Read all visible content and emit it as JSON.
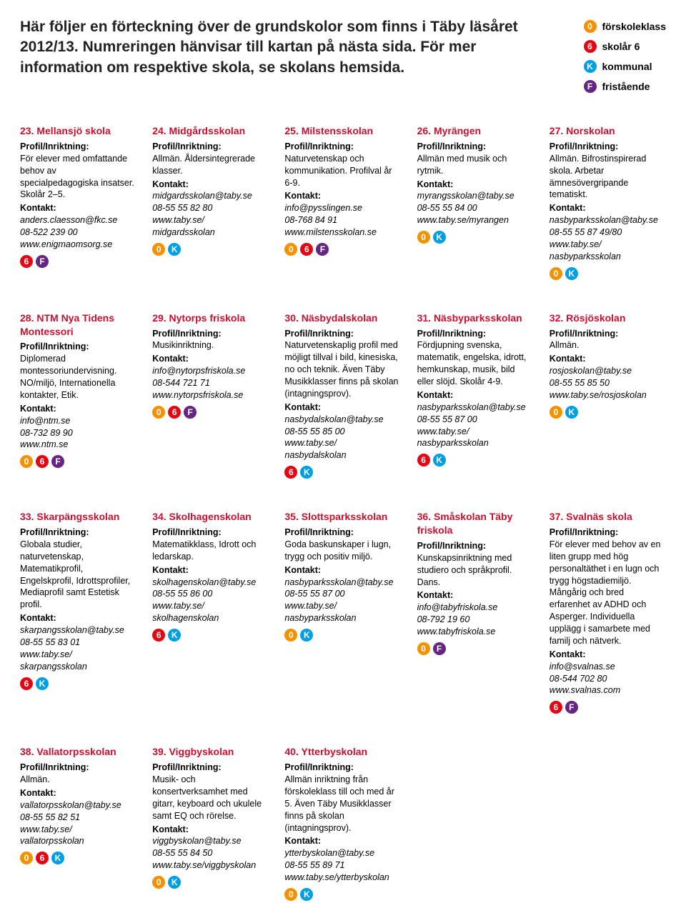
{
  "intro_line1": "Här följer en förteckning över de grundskolor som finns i Täby läsåret 2012/13. Numreringen hänvisar till kartan på nästa sida. För mer information om respektive skola, se skolans hemsida.",
  "legend": [
    {
      "letter": "0",
      "color": "#f39200",
      "label": "förskoleklass"
    },
    {
      "letter": "6",
      "color": "#e30613",
      "label": "skolår 6"
    },
    {
      "letter": "K",
      "color": "#009fe3",
      "label": "kommunal"
    },
    {
      "letter": "F",
      "color": "#662483",
      "label": "fristående"
    }
  ],
  "labels": {
    "profile": "Profil/Inriktning:",
    "contact": "Kontakt:"
  },
  "schools": [
    {
      "title": "23. Mellansjö skola",
      "profile": "För elever med omfattande behov av specialpedagogiska insatser. Skolår 2–5.",
      "contact": [
        "anders.claesson@fkc.se",
        "08-522 239 00",
        "www.enigmaomsorg.se"
      ],
      "badges": [
        {
          "l": "6",
          "c": "#e30613"
        },
        {
          "l": "F",
          "c": "#662483"
        }
      ]
    },
    {
      "title": "24. Midgårdsskolan",
      "profile": "Allmän. Åldersintegrerade klasser.",
      "contact": [
        "midgardsskolan@taby.se",
        "08-55 55 82 80",
        "www.taby.se/",
        "midgardsskolan"
      ],
      "badges": [
        {
          "l": "0",
          "c": "#f39200"
        },
        {
          "l": "K",
          "c": "#009fe3"
        }
      ]
    },
    {
      "title": "25. Milstensskolan",
      "profile": "Naturvetenskap och kommunikation. Profilval år 6-9.",
      "contact": [
        "info@pysslingen.se",
        "08-768 84 91",
        "www.milstensskolan.se"
      ],
      "badges": [
        {
          "l": "0",
          "c": "#f39200"
        },
        {
          "l": "6",
          "c": "#e30613"
        },
        {
          "l": "F",
          "c": "#662483"
        }
      ]
    },
    {
      "title": "26. Myrängen",
      "profile": "Allmän med musik och rytmik.",
      "contact": [
        "myrangsskolan@taby.se",
        "08-55 55 84 00",
        "www.taby.se/myrangen"
      ],
      "badges": [
        {
          "l": "0",
          "c": "#f39200"
        },
        {
          "l": "K",
          "c": "#009fe3"
        }
      ]
    },
    {
      "title": "27. Norskolan",
      "profile": "Allmän. Bifrostinspirerad skola. Arbetar ämnesövergripande tematiskt.",
      "contact": [
        "nasbyparksskolan@taby.se",
        "08-55 55 87 49/80",
        "www.taby.se/",
        "nasbyparksskolan"
      ],
      "badges": [
        {
          "l": "0",
          "c": "#f39200"
        },
        {
          "l": "K",
          "c": "#009fe3"
        }
      ]
    },
    {
      "title": "28. NTM Nya Tidens Montessori",
      "profile": "Diplomerad montessoriundervisning. NO/miljö, Internationella kontakter, Etik.",
      "contact": [
        "info@ntm.se",
        "08-732 89 90",
        "www.ntm.se"
      ],
      "badges": [
        {
          "l": "0",
          "c": "#f39200"
        },
        {
          "l": "6",
          "c": "#e30613"
        },
        {
          "l": "F",
          "c": "#662483"
        }
      ]
    },
    {
      "title": "29. Nytorps friskola",
      "profile": "Musikinriktning.",
      "contact": [
        "info@nytorpsfriskola.se",
        "08-544 721 71",
        "www.nytorpsfriskola.se"
      ],
      "badges": [
        {
          "l": "0",
          "c": "#f39200"
        },
        {
          "l": "6",
          "c": "#e30613"
        },
        {
          "l": "F",
          "c": "#662483"
        }
      ]
    },
    {
      "title": "30. Näsbydalskolan",
      "profile": "Naturvetenskaplig profil med möjligt tillval i bild, kinesiska, no och teknik. Även Täby Musikklasser finns på skolan (intagningsprov).",
      "contact": [
        "nasbydalskolan@taby.se",
        "08-55 55 85 00",
        "www.taby.se/",
        "nasbydalskolan"
      ],
      "badges": [
        {
          "l": "6",
          "c": "#e30613"
        },
        {
          "l": "K",
          "c": "#009fe3"
        }
      ]
    },
    {
      "title": "31. Näsbyparksskolan",
      "profile": "Fördjupning svenska, matematik, engelska, idrott, hemkunskap, musik, bild eller slöjd. Skolår 4-9.",
      "contact": [
        "nasbyparksskolan@taby.se",
        "08-55 55 87 00",
        "www.taby.se/",
        "nasbyparksskolan"
      ],
      "badges": [
        {
          "l": "6",
          "c": "#e30613"
        },
        {
          "l": "K",
          "c": "#009fe3"
        }
      ]
    },
    {
      "title": "32. Rösjöskolan",
      "profile": "Allmän.",
      "contact": [
        "rosjoskolan@taby.se",
        "08-55 55 85 50",
        "www.taby.se/rosjoskolan"
      ],
      "badges": [
        {
          "l": "0",
          "c": "#f39200"
        },
        {
          "l": "K",
          "c": "#009fe3"
        }
      ]
    },
    {
      "title": "33. Skarpängsskolan",
      "profile": "Globala studier, naturvetenskap, Matematikprofil, Engelskprofil, Idrottsprofiler, Mediaprofil samt Estetisk profil.",
      "contact": [
        "skarpangsskolan@taby.se",
        "08-55 55 83 01",
        "www.taby.se/",
        "skarpangsskolan"
      ],
      "badges": [
        {
          "l": "6",
          "c": "#e30613"
        },
        {
          "l": "K",
          "c": "#009fe3"
        }
      ]
    },
    {
      "title": "34. Skolhagenskolan",
      "profile": "Matematikklass, Idrott och ledarskap.",
      "contact": [
        "skolhagenskolan@taby.se",
        "08-55 55 86 00",
        "www.taby.se/",
        "skolhagenskolan"
      ],
      "badges": [
        {
          "l": "6",
          "c": "#e30613"
        },
        {
          "l": "K",
          "c": "#009fe3"
        }
      ]
    },
    {
      "title": "35. Slottsparksskolan",
      "profile": "Goda baskunskaper i lugn, trygg och positiv miljö.",
      "contact": [
        "nasbyparksskolan@taby.se",
        "08-55 55 87 00",
        "www.taby.se/",
        "nasbyparksskolan"
      ],
      "badges": [
        {
          "l": "0",
          "c": "#f39200"
        },
        {
          "l": "K",
          "c": "#009fe3"
        }
      ]
    },
    {
      "title": "36. Småskolan Täby friskola",
      "profile": "Kunskapsinriktning med studiero och språkprofil. Dans.",
      "contact": [
        "info@tabyfriskola.se",
        "08-792 19 60",
        "www.tabyfriskola.se"
      ],
      "badges": [
        {
          "l": "0",
          "c": "#f39200"
        },
        {
          "l": "F",
          "c": "#662483"
        }
      ]
    },
    {
      "title": "37. Svalnäs skola",
      "profile": "För elever med behov av en liten grupp med hög personaltäthet i en lugn och trygg högstadiemiljö. Mångårig och bred erfarenhet av ADHD och Asperger. Individuella upplägg i samarbete med familj och nätverk.",
      "contact": [
        "info@svalnas.se",
        "08-544 702 80",
        "www.svalnas.com"
      ],
      "badges": [
        {
          "l": "6",
          "c": "#e30613"
        },
        {
          "l": "F",
          "c": "#662483"
        }
      ]
    },
    {
      "title": "38. Vallatorpsskolan",
      "profile": "Allmän.",
      "contact": [
        "vallatorpsskolan@taby.se",
        "08-55 55 82 51",
        "www.taby.se/",
        "vallatorpsskolan"
      ],
      "badges": [
        {
          "l": "0",
          "c": "#f39200"
        },
        {
          "l": "6",
          "c": "#e30613"
        },
        {
          "l": "K",
          "c": "#009fe3"
        }
      ]
    },
    {
      "title": "39. Viggbyskolan",
      "profile": "Musik- och konsertverksamhet med gitarr, keyboard och ukulele samt EQ och rörelse.",
      "contact": [
        "viggbyskolan@taby.se",
        "08-55 55 84 50",
        "www.taby.se/viggbyskolan"
      ],
      "badges": [
        {
          "l": "0",
          "c": "#f39200"
        },
        {
          "l": "K",
          "c": "#009fe3"
        }
      ]
    },
    {
      "title": "40. Ytterbyskolan",
      "profile": "Allmän inriktning från förskoleklass till och med år 5. Även Täby Musikklasser finns på skolan (intagningsprov).",
      "contact": [
        "ytterbyskolan@taby.se",
        "08-55 55 89 71",
        "www.taby.se/ytterbyskolan"
      ],
      "badges": [
        {
          "l": "0",
          "c": "#f39200"
        },
        {
          "l": "K",
          "c": "#009fe3"
        }
      ]
    }
  ]
}
